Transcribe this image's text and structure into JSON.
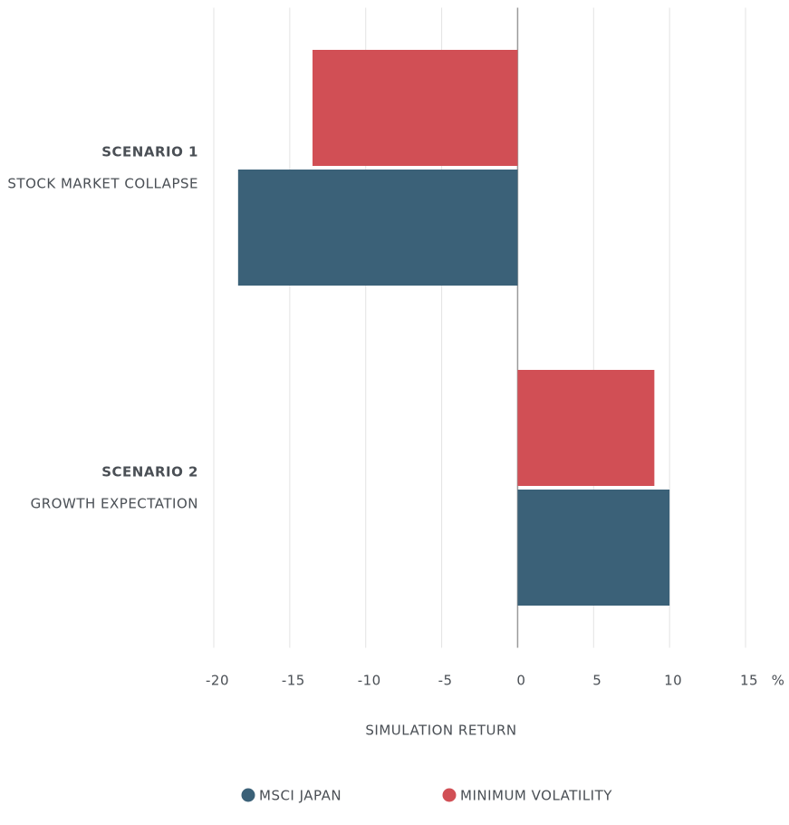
{
  "chart_data": {
    "type": "hbar",
    "categories": [
      "SCENARIO 1",
      "SCENARIO 2"
    ],
    "category_subtitles": [
      "STOCK MARKET COLLAPSE",
      "GROWTH EXPECTATION"
    ],
    "series": [
      {
        "name": "MSCI JAPAN",
        "color": "#3b6178",
        "values": [
          -18.4,
          10
        ]
      },
      {
        "name": "MINIMUM VOLATILITY",
        "color": "#d14f55",
        "values": [
          -13.5,
          9
        ]
      }
    ],
    "xlim": [
      -20,
      15
    ],
    "xticks": [
      -20,
      -15,
      -10,
      -5,
      0,
      5,
      10,
      15
    ],
    "x_unit": "%",
    "xlabel": "SIMULATION RETURN",
    "grid": true
  }
}
